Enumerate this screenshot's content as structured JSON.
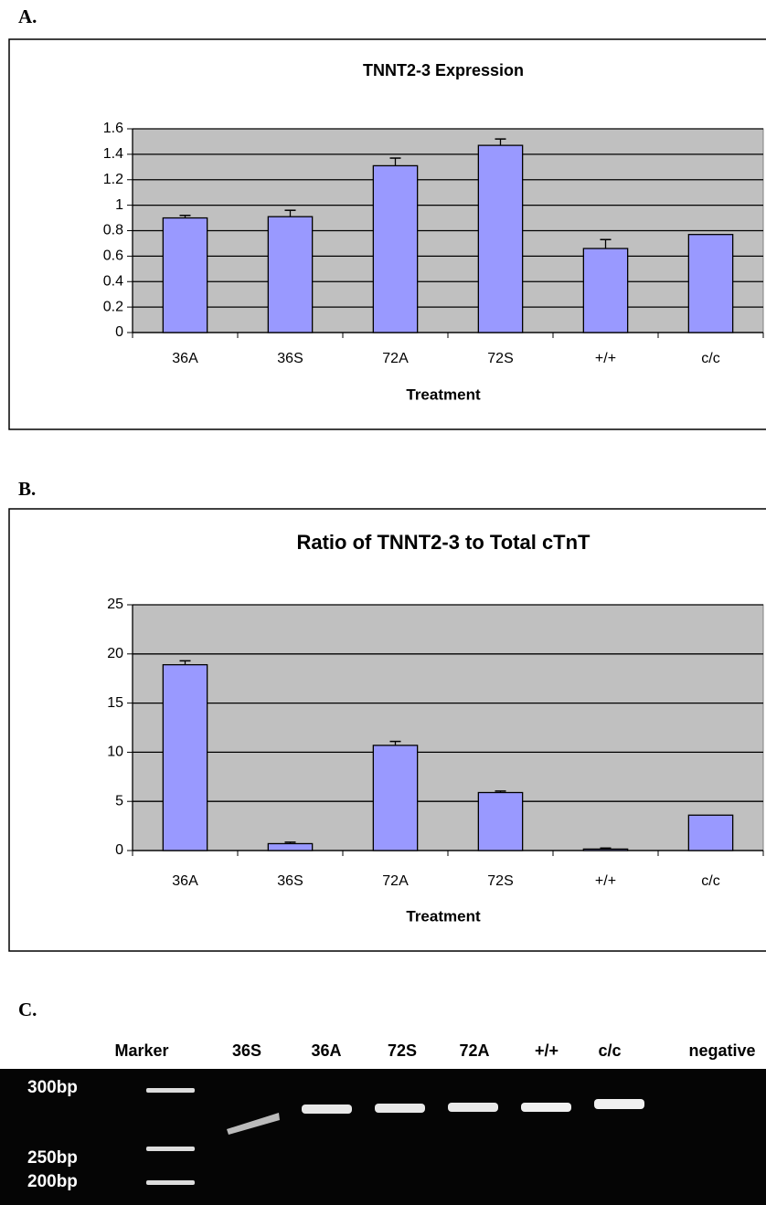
{
  "panel_labels": [
    "A.",
    "B.",
    "C."
  ],
  "chart_data": [
    {
      "type": "bar",
      "title": "TNNT2-3 Expression",
      "x_label": "Treatment",
      "categories": [
        "36A",
        "36S",
        "72A",
        "72S",
        "+/+",
        "c/c"
      ],
      "values": [
        0.9,
        0.91,
        1.31,
        1.47,
        0.66,
        0.77
      ],
      "errors": [
        0.02,
        0.05,
        0.06,
        0.05,
        0.07,
        null
      ],
      "color": "#9999ff",
      "plot_background": "#c0c0c0",
      "ylim": [
        0,
        1.6
      ],
      "yticks": [
        0,
        0.2,
        0.4,
        0.6,
        0.8,
        1,
        1.2,
        1.4,
        1.6
      ],
      "grid": true
    },
    {
      "type": "bar",
      "title": "Ratio of TNNT2-3 to Total cTnT",
      "x_label": "Treatment",
      "categories": [
        "36A",
        "36S",
        "72A",
        "72S",
        "+/+",
        "c/c"
      ],
      "values": [
        18.9,
        0.7,
        10.7,
        5.9,
        0.15,
        3.6
      ],
      "errors": [
        0.4,
        0.15,
        0.4,
        0.15,
        0.1,
        null
      ],
      "color": "#9999ff",
      "plot_background": "#c0c0c0",
      "ylim": [
        0,
        25
      ],
      "yticks": [
        0,
        5,
        10,
        15,
        20,
        25
      ],
      "grid": true
    }
  ],
  "gel": {
    "lanes": [
      "Marker",
      "36S",
      "36A",
      "72S",
      "72A",
      "+/+",
      "c/c",
      "negative"
    ],
    "size_labels": [
      "300bp",
      "250bp",
      "200bp"
    ]
  }
}
